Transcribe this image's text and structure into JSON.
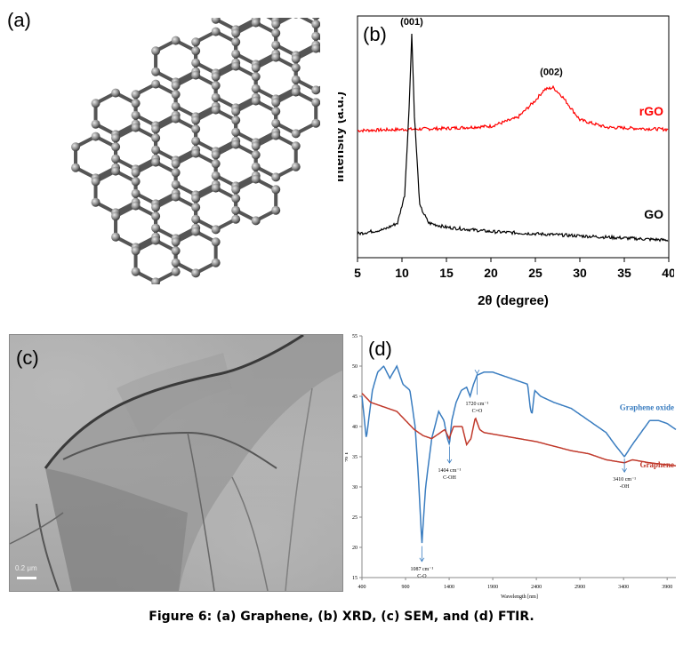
{
  "panels": {
    "a": {
      "label": "(a)"
    },
    "b": {
      "label": "(b)"
    },
    "c": {
      "label": "(c)",
      "scale_bar": "0.2 μm"
    },
    "d": {
      "label": "(d)"
    }
  },
  "caption": "Figure 6: (a) Graphene, (b) XRD, (c) SEM, and (d) FTIR.",
  "chart_data": [
    {
      "type": "line",
      "panel": "b",
      "xlabel": "2θ (degree)",
      "ylabel": "Intensity (a.u.)",
      "xlim": [
        5,
        40
      ],
      "xticks": [
        "5",
        "10",
        "15",
        "20",
        "25",
        "30",
        "35",
        "40"
      ],
      "yticks": false,
      "grid": false,
      "series": [
        {
          "name": "rGO",
          "color": "#ff0000",
          "baseline": 0.55,
          "x": [
            5,
            10,
            15,
            20,
            23,
            25,
            26,
            27,
            28,
            30,
            33,
            40
          ],
          "y": [
            0.55,
            0.555,
            0.56,
            0.57,
            0.61,
            0.69,
            0.74,
            0.75,
            0.71,
            0.6,
            0.565,
            0.555
          ]
        },
        {
          "name": "GO",
          "color": "#000000",
          "x": [
            5,
            8,
            9.5,
            10.3,
            10.8,
            11.1,
            11.4,
            12,
            13,
            15,
            20,
            30,
            40
          ],
          "y": [
            0.07,
            0.09,
            0.12,
            0.25,
            0.65,
            1.0,
            0.62,
            0.2,
            0.12,
            0.1,
            0.08,
            0.06,
            0.04
          ]
        }
      ],
      "annotations": [
        {
          "text": "(001)",
          "x": 11.1
        },
        {
          "text": "(002)",
          "x": 26.8
        }
      ]
    },
    {
      "type": "line",
      "panel": "d",
      "xlabel": "Wavelength [nm]",
      "ylabel": "% T",
      "xlim": [
        400,
        4000
      ],
      "ylim": [
        15,
        55
      ],
      "xticks": [
        "400",
        "900",
        "1400",
        "1900",
        "2400",
        "2900",
        "3400",
        "3900"
      ],
      "yticks": [
        "15",
        "20",
        "25",
        "30",
        "35",
        "40",
        "45",
        "50",
        "55"
      ],
      "series": [
        {
          "name": "Graphene oxide",
          "color": "#3a7dc0",
          "x": [
            400,
            450,
            520,
            580,
            650,
            720,
            800,
            870,
            950,
            1010,
            1050,
            1087,
            1130,
            1200,
            1280,
            1340,
            1380,
            1404,
            1430,
            1480,
            1540,
            1600,
            1640,
            1680,
            1720,
            1800,
            1900,
            2000,
            2100,
            2200,
            2300,
            2330,
            2350,
            2380,
            2450,
            2600,
            2800,
            3000,
            3200,
            3300,
            3410,
            3500,
            3600,
            3700,
            3800,
            3900,
            4000
          ],
          "y": [
            45,
            38,
            46,
            49,
            50,
            48,
            50,
            47,
            46,
            40,
            31,
            20.5,
            30,
            38,
            42.5,
            41,
            38,
            37,
            41,
            44,
            46,
            46.5,
            45,
            47,
            48.5,
            49,
            49,
            48.5,
            48,
            47.5,
            47,
            43,
            42,
            46,
            45,
            44,
            43,
            41,
            39,
            37,
            35,
            37,
            39,
            41,
            41,
            40.5,
            39.5
          ]
        },
        {
          "name": "Graphene",
          "color": "#c0392b",
          "x": [
            400,
            500,
            600,
            700,
            800,
            900,
            1000,
            1100,
            1200,
            1300,
            1350,
            1400,
            1450,
            1550,
            1600,
            1650,
            1700,
            1750,
            1800,
            2000,
            2400,
            2800,
            3000,
            3200,
            3410,
            3500,
            3700,
            4000
          ],
          "y": [
            45.5,
            44,
            43.5,
            43,
            42.5,
            41,
            39.5,
            38.5,
            38,
            39,
            39.5,
            38,
            40,
            40,
            37,
            38,
            41.5,
            39.5,
            39,
            38.5,
            37.5,
            36,
            35.5,
            34.5,
            34,
            34.5,
            34,
            33.5
          ]
        }
      ],
      "annotations": [
        {
          "text": "1087 cm⁻¹",
          "sub": "C-O",
          "x": 1087
        },
        {
          "text": "1404 cm⁻¹",
          "sub": "C-OH",
          "x": 1404
        },
        {
          "text": "1720 cm⁻¹",
          "sub": "C=O",
          "x": 1720
        },
        {
          "text": "3410 cm⁻¹",
          "sub": "-OH",
          "x": 3410
        }
      ]
    }
  ]
}
